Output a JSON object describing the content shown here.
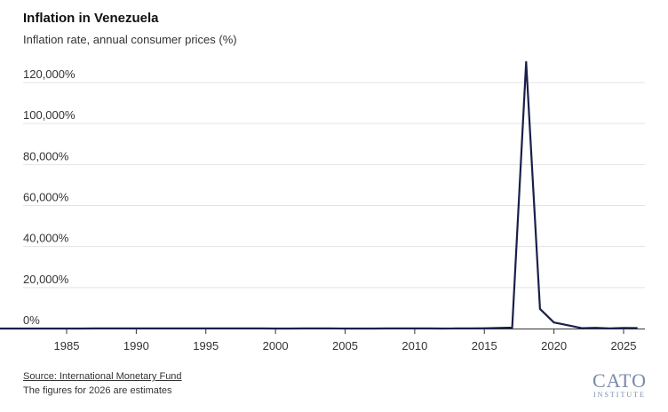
{
  "header": {
    "title": "Inflation in Venezuela",
    "subtitle": "Inflation rate, annual consumer prices (%)"
  },
  "footer": {
    "source": "Source: International Monetary Fund",
    "note": "The figures for 2026 are estimates",
    "logo_word": "CATO",
    "logo_sub": "INSTITUTE"
  },
  "colors": {
    "line": "#1b1f4b",
    "grid": "#e3e3e3",
    "axis": "#333333",
    "text": "#333333",
    "logo": "#7a8aa8"
  },
  "chart_data": {
    "type": "line",
    "x_ticks": [
      "1985",
      "1990",
      "1995",
      "2000",
      "2005",
      "2010",
      "2015",
      "2020",
      "2025"
    ],
    "y_ticks": [
      "0%",
      "20,000%",
      "40,000%",
      "60,000%",
      "80,000%",
      "100,000%",
      "120,000%"
    ],
    "ylim": [
      0,
      130000
    ],
    "xlim": [
      1980,
      2026.5
    ],
    "grid": true,
    "series": [
      {
        "x": [
          1980,
          1981,
          1982,
          1983,
          1984,
          1985,
          1986,
          1987,
          1988,
          1989,
          1990,
          1991,
          1992,
          1993,
          1994,
          1995,
          1996,
          1997,
          1998,
          1999,
          2000,
          2001,
          2002,
          2003,
          2004,
          2005,
          2006,
          2007,
          2008,
          2009,
          2010,
          2011,
          2012,
          2013,
          2014,
          2015,
          2016,
          2017,
          2018,
          2019,
          2020,
          2021,
          2022,
          2023,
          2024,
          2025,
          2026
        ],
        "values": [
          21,
          16,
          10,
          6,
          12,
          11,
          12,
          28,
          30,
          84,
          41,
          34,
          31,
          38,
          61,
          60,
          100,
          50,
          36,
          24,
          16,
          13,
          22,
          31,
          22,
          16,
          14,
          19,
          31,
          27,
          28,
          26,
          21,
          41,
          62,
          122,
          255,
          438,
          130060,
          9585,
          2960,
          1588,
          186,
          337,
          48,
          270,
          200
        ]
      }
    ]
  }
}
